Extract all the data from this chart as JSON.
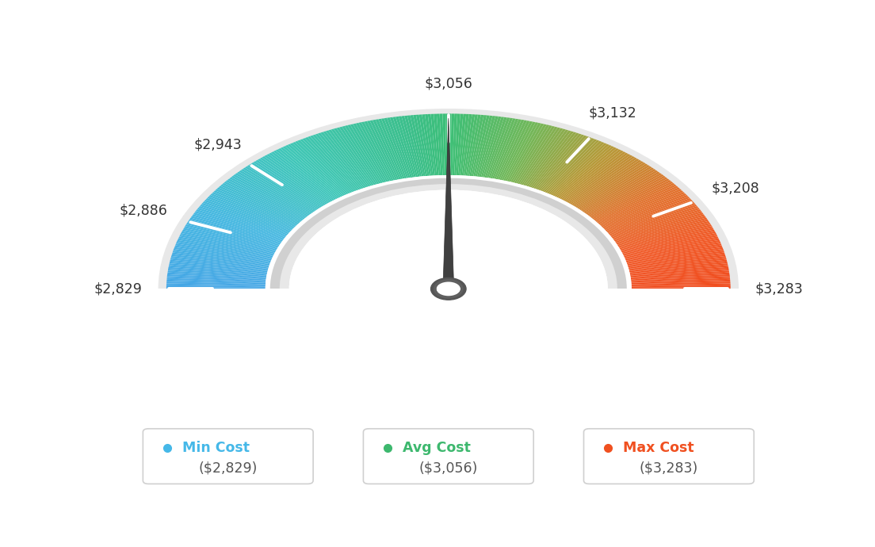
{
  "min_val": 2829,
  "avg_val": 3056,
  "max_val": 3283,
  "tick_values": [
    2829,
    2886,
    2943,
    3056,
    3132,
    3208,
    3283
  ],
  "tick_labels": [
    "$2,829",
    "$2,886",
    "$2,943",
    "$3,056",
    "$3,132",
    "$3,208",
    "$3,283"
  ],
  "legend_items": [
    {
      "label": "Min Cost",
      "value": "($2,829)",
      "color": "#45b8e8"
    },
    {
      "label": "Avg Cost",
      "value": "($3,056)",
      "color": "#3db86e"
    },
    {
      "label": "Max Cost",
      "value": "($3,283)",
      "color": "#f05020"
    }
  ],
  "bg_color": "#ffffff",
  "gauge_colors": [
    [
      0.0,
      [
        0.27,
        0.65,
        0.9
      ]
    ],
    [
      0.15,
      [
        0.27,
        0.72,
        0.88
      ]
    ],
    [
      0.3,
      [
        0.25,
        0.78,
        0.72
      ]
    ],
    [
      0.45,
      [
        0.24,
        0.75,
        0.55
      ]
    ],
    [
      0.5,
      [
        0.24,
        0.75,
        0.47
      ]
    ],
    [
      0.6,
      [
        0.45,
        0.72,
        0.35
      ]
    ],
    [
      0.7,
      [
        0.72,
        0.6,
        0.22
      ]
    ],
    [
      0.8,
      [
        0.88,
        0.45,
        0.18
      ]
    ],
    [
      0.9,
      [
        0.94,
        0.35,
        0.15
      ]
    ],
    [
      1.0,
      [
        0.94,
        0.3,
        0.12
      ]
    ]
  ]
}
